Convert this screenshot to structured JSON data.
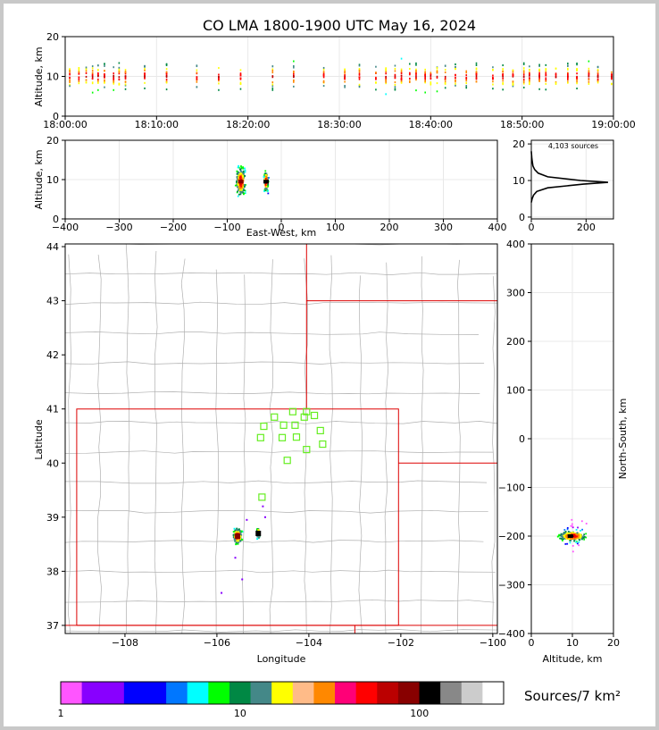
{
  "title": "CO LMA 1800-1900 UTC May 16, 2024",
  "colors": {
    "frame": "#c8c8c8",
    "state_border": "#dd0000",
    "county_line": "#b0b0b0",
    "station_marker": "#66ee22",
    "grid": "#e8e8e8"
  },
  "time_height": {
    "ylabel": "Altitude, km",
    "ylim": [
      0,
      20
    ],
    "yticks": [
      "0",
      "10",
      "20"
    ],
    "xticks": [
      "18:00:00",
      "18:10:00",
      "18:20:00",
      "18:30:00",
      "18:40:00",
      "18:50:00",
      "19:00:00"
    ]
  },
  "ew_height": {
    "xlabel": "East-West, km",
    "ylabel": "Altitude, km",
    "xlim": [
      -400,
      400
    ],
    "ylim": [
      0,
      20
    ],
    "xticks": [
      "−400",
      "−300",
      "−200",
      "−100",
      "0",
      "100",
      "200",
      "300",
      "400"
    ],
    "yticks": [
      "0",
      "10",
      "20"
    ]
  },
  "histogram": {
    "annotation": "4,103 sources",
    "xticks": [
      "0",
      "200"
    ],
    "yticks": [
      "0",
      "10",
      "20"
    ]
  },
  "plan_view": {
    "xlabel": "Longitude",
    "ylabel": "Latitude",
    "xlim": [
      -109.3,
      -99.9
    ],
    "ylim": [
      36.85,
      44.05
    ],
    "xticks": [
      "−108",
      "−106",
      "−104",
      "−102",
      "−100"
    ],
    "yticks": [
      "37",
      "38",
      "39",
      "40",
      "41",
      "42",
      "43",
      "44"
    ]
  },
  "ns_height": {
    "xlabel": "Altitude, km",
    "ylabel": "North-South, km",
    "xticks": [
      "0",
      "10",
      "20"
    ],
    "yticks": [
      "−400",
      "−300",
      "−200",
      "−100",
      "0",
      "100",
      "200",
      "300",
      "400"
    ]
  },
  "colorbar": {
    "label": "Sources/7 km²",
    "ticks": [
      "1",
      "10",
      "100"
    ],
    "colors": [
      "#ff55ff",
      "#8800ff",
      "#8800ff",
      "#0000ff",
      "#0000ff",
      "#0077ff",
      "#00ffff",
      "#00ff00",
      "#008844",
      "#448888",
      "#ffff00",
      "#ffbb88",
      "#ff8800",
      "#ff0077",
      "#ff0000",
      "#bb0000",
      "#880000",
      "#000000",
      "#888888",
      "#cccccc",
      "#ffffff"
    ]
  },
  "chart_data": {
    "type": "scatter",
    "title": "CO LMA 1800-1900 UTC May 16, 2024",
    "total_sources": 4103,
    "time_height_columns_min": [
      0.5,
      1.5,
      2.3,
      3.0,
      3.6,
      4.3,
      5.3,
      5.9,
      6.6,
      8.7,
      11.1,
      14.4,
      16.8,
      19.2,
      22.7,
      25.0,
      28.3,
      30.6,
      32.2,
      34.0,
      35.1,
      36.1,
      36.8,
      37.7,
      38.4,
      39.4,
      40.0,
      40.7,
      41.6,
      42.7,
      43.9,
      45.0,
      46.8,
      47.9,
      49.0,
      50.2,
      50.8,
      51.9,
      52.6,
      53.7,
      55.0,
      56.0,
      57.3,
      58.3,
      59.8
    ],
    "cells": [
      {
        "lat": 38.65,
        "lon": -105.55,
        "alt_range_km": [
          5,
          19
        ],
        "peak_alt_km": 9.5,
        "ew_km": -75,
        "ns_km": -200
      },
      {
        "lat": 38.7,
        "lon": -105.1,
        "alt_range_km": [
          5,
          16
        ],
        "peak_alt_km": 9.5,
        "ew_km": -28,
        "ns_km": -200
      }
    ],
    "stations": [
      {
        "lat": 40.95,
        "lon": -104.35
      },
      {
        "lat": 40.95,
        "lon": -104.05
      },
      {
        "lat": 40.85,
        "lon": -104.1
      },
      {
        "lat": 40.88,
        "lon": -103.88
      },
      {
        "lat": 40.85,
        "lon": -104.75
      },
      {
        "lat": 40.7,
        "lon": -104.55
      },
      {
        "lat": 40.7,
        "lon": -104.3
      },
      {
        "lat": 40.68,
        "lon": -104.98
      },
      {
        "lat": 40.6,
        "lon": -103.75
      },
      {
        "lat": 40.47,
        "lon": -105.05
      },
      {
        "lat": 40.47,
        "lon": -104.58
      },
      {
        "lat": 40.48,
        "lon": -104.27
      },
      {
        "lat": 40.35,
        "lon": -103.7
      },
      {
        "lat": 40.25,
        "lon": -104.05
      },
      {
        "lat": 40.05,
        "lon": -104.47
      },
      {
        "lat": 39.37,
        "lon": -105.02
      }
    ],
    "altitude_histogram": [
      {
        "alt": 4,
        "count": 0
      },
      {
        "alt": 5,
        "count": 3
      },
      {
        "alt": 6,
        "count": 8
      },
      {
        "alt": 7,
        "count": 20
      },
      {
        "alt": 8,
        "count": 60
      },
      {
        "alt": 9,
        "count": 190
      },
      {
        "alt": 9.5,
        "count": 280
      },
      {
        "alt": 10,
        "count": 180
      },
      {
        "alt": 11,
        "count": 60
      },
      {
        "alt": 12,
        "count": 25
      },
      {
        "alt": 13,
        "count": 12
      },
      {
        "alt": 14,
        "count": 6
      },
      {
        "alt": 15,
        "count": 4
      },
      {
        "alt": 16,
        "count": 2
      },
      {
        "alt": 17,
        "count": 1
      },
      {
        "alt": 18,
        "count": 0
      }
    ]
  }
}
